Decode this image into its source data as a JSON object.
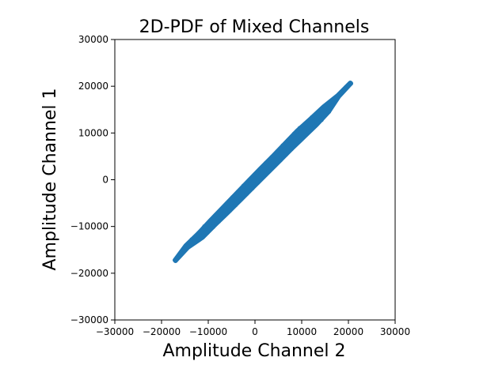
{
  "chart_data": {
    "type": "scatter",
    "title": "2D-PDF of Mixed Channels",
    "xlabel": "Amplitude Channel 2",
    "ylabel": "Amplitude Channel 1",
    "xlim": [
      -30000,
      30000
    ],
    "ylim": [
      -30000,
      30000
    ],
    "x_ticks": [
      -30000,
      -20000,
      -10000,
      0,
      10000,
      20000,
      30000
    ],
    "y_ticks": [
      -30000,
      -20000,
      -10000,
      0,
      10000,
      20000,
      30000
    ],
    "x_tick_labels": [
      "−30000",
      "−20000",
      "−10000",
      "0",
      "10000",
      "20000",
      "30000"
    ],
    "y_tick_labels": [
      "−30000",
      "−20000",
      "−10000",
      "0",
      "10000",
      "20000",
      "30000"
    ],
    "grid": false,
    "series": [
      {
        "color": "#1f77b4",
        "points": [
          [
            -17000,
            -17300
          ],
          [
            -16500,
            -16600
          ],
          [
            -16000,
            -16100
          ],
          [
            -15200,
            -14900
          ],
          [
            -14200,
            -14300
          ],
          [
            -13500,
            -12800
          ],
          [
            -12800,
            -13200
          ],
          [
            -12000,
            -11400
          ],
          [
            -11500,
            -12200
          ],
          [
            -10800,
            -10000
          ],
          [
            -10200,
            -11300
          ],
          [
            -9600,
            -8800
          ],
          [
            -9000,
            -10100
          ],
          [
            -8400,
            -7600
          ],
          [
            -7800,
            -8900
          ],
          [
            -7200,
            -6400
          ],
          [
            -6600,
            -7700
          ],
          [
            -6000,
            -5100
          ],
          [
            -5400,
            -6600
          ],
          [
            -4800,
            -3800
          ],
          [
            -4200,
            -5400
          ],
          [
            -3600,
            -2600
          ],
          [
            -3000,
            -4200
          ],
          [
            -2400,
            -1300
          ],
          [
            -1800,
            -3000
          ],
          [
            -1200,
            -100
          ],
          [
            -600,
            -1800
          ],
          [
            0,
            1100
          ],
          [
            600,
            -600
          ],
          [
            1200,
            2300
          ],
          [
            1800,
            600
          ],
          [
            2400,
            3600
          ],
          [
            3000,
            1800
          ],
          [
            3600,
            4800
          ],
          [
            4200,
            3000
          ],
          [
            4800,
            6000
          ],
          [
            5400,
            4200
          ],
          [
            6000,
            7300
          ],
          [
            6600,
            5400
          ],
          [
            7200,
            8500
          ],
          [
            7800,
            6600
          ],
          [
            8400,
            9800
          ],
          [
            9000,
            7800
          ],
          [
            9600,
            11000
          ],
          [
            10200,
            9000
          ],
          [
            10800,
            11800
          ],
          [
            11500,
            10200
          ],
          [
            12200,
            13300
          ],
          [
            12800,
            11500
          ],
          [
            13500,
            14400
          ],
          [
            14200,
            12800
          ],
          [
            15000,
            15600
          ],
          [
            15800,
            14600
          ],
          [
            16500,
            16800
          ],
          [
            17500,
            17400
          ],
          [
            18500,
            18700
          ],
          [
            19500,
            19800
          ],
          [
            20500,
            20600
          ]
        ]
      }
    ]
  }
}
